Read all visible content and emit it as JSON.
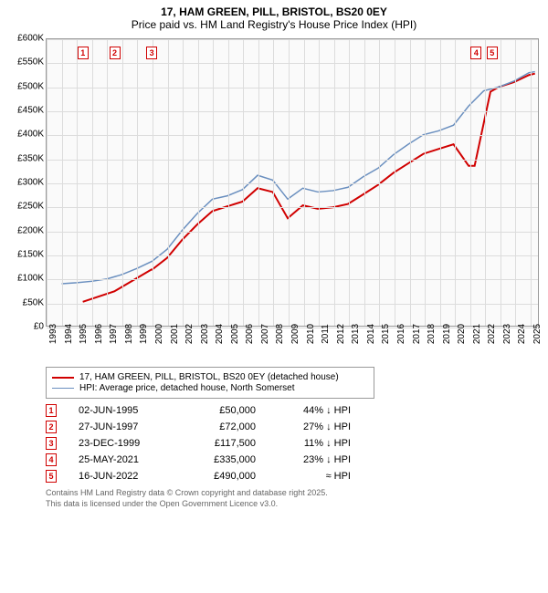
{
  "title": {
    "line1": "17, HAM GREEN, PILL, BRISTOL, BS20 0EY",
    "line2": "Price paid vs. HM Land Registry's House Price Index (HPI)"
  },
  "chart": {
    "type": "line",
    "plot_bg": "#fafafa",
    "grid_color": "#dcdcdc",
    "border_color": "#999999",
    "x_years": [
      1993,
      1994,
      1995,
      1996,
      1997,
      1998,
      1999,
      2000,
      2001,
      2002,
      2003,
      2004,
      2005,
      2006,
      2007,
      2008,
      2009,
      2010,
      2011,
      2012,
      2013,
      2014,
      2015,
      2016,
      2017,
      2018,
      2019,
      2020,
      2021,
      2022,
      2023,
      2024,
      2025
    ],
    "xlim": [
      1993,
      2025.6
    ],
    "ylim": [
      0,
      600
    ],
    "y_ticks": [
      0,
      50,
      100,
      150,
      200,
      250,
      300,
      350,
      400,
      450,
      500,
      550,
      600
    ],
    "y_tick_labels": [
      "£0",
      "£50K",
      "£100K",
      "£150K",
      "£200K",
      "£250K",
      "£300K",
      "£350K",
      "£400K",
      "£450K",
      "£500K",
      "£550K",
      "£600K"
    ],
    "series": [
      {
        "name": "price_paid",
        "color": "#d00000",
        "width": 2,
        "points": [
          [
            1995.4,
            50
          ],
          [
            1997.5,
            72
          ],
          [
            1999.95,
            117.5
          ],
          [
            2000.0,
            117.5
          ],
          [
            2001,
            142
          ],
          [
            2002,
            180
          ],
          [
            2003,
            212
          ],
          [
            2004,
            240
          ],
          [
            2005,
            250
          ],
          [
            2006,
            260
          ],
          [
            2007,
            288
          ],
          [
            2008,
            280
          ],
          [
            2009,
            225
          ],
          [
            2010,
            252
          ],
          [
            2011,
            245
          ],
          [
            2012,
            248
          ],
          [
            2013,
            255
          ],
          [
            2014,
            275
          ],
          [
            2015,
            295
          ],
          [
            2016,
            320
          ],
          [
            2017,
            340
          ],
          [
            2018,
            360
          ],
          [
            2019,
            370
          ],
          [
            2020,
            380
          ],
          [
            2021,
            335
          ],
          [
            2021.4,
            335
          ],
          [
            2022.45,
            490
          ],
          [
            2023,
            500
          ],
          [
            2024,
            510
          ],
          [
            2025,
            525
          ],
          [
            2025.4,
            528
          ]
        ]
      },
      {
        "name": "hpi",
        "color": "#6a8fbf",
        "width": 1.5,
        "points": [
          [
            1994.0,
            88
          ],
          [
            1995,
            90
          ],
          [
            1996,
            93
          ],
          [
            1997,
            98
          ],
          [
            1998,
            107
          ],
          [
            1999,
            120
          ],
          [
            2000,
            135
          ],
          [
            2001,
            160
          ],
          [
            2002,
            200
          ],
          [
            2003,
            235
          ],
          [
            2004,
            265
          ],
          [
            2005,
            272
          ],
          [
            2006,
            285
          ],
          [
            2007,
            315
          ],
          [
            2008,
            305
          ],
          [
            2009,
            265
          ],
          [
            2010,
            288
          ],
          [
            2011,
            280
          ],
          [
            2012,
            283
          ],
          [
            2013,
            290
          ],
          [
            2014,
            312
          ],
          [
            2015,
            330
          ],
          [
            2016,
            358
          ],
          [
            2017,
            380
          ],
          [
            2018,
            400
          ],
          [
            2019,
            408
          ],
          [
            2020,
            420
          ],
          [
            2021,
            460
          ],
          [
            2022,
            492
          ],
          [
            2023,
            500
          ],
          [
            2024,
            512
          ],
          [
            2025,
            530
          ],
          [
            2025.4,
            532
          ]
        ]
      }
    ],
    "markers": [
      {
        "n": "1",
        "x": 1995.4,
        "y_top": 8
      },
      {
        "n": "2",
        "x": 1997.5,
        "y_top": 8
      },
      {
        "n": "3",
        "x": 1999.95,
        "y_top": 8
      },
      {
        "n": "4",
        "x": 2021.4,
        "y_top": 8
      },
      {
        "n": "5",
        "x": 2022.45,
        "y_top": 8
      }
    ]
  },
  "legend": {
    "items": [
      {
        "color": "#d00000",
        "w": 2,
        "label": "17, HAM GREEN, PILL, BRISTOL, BS20 0EY (detached house)"
      },
      {
        "color": "#6a8fbf",
        "w": 1.5,
        "label": "HPI: Average price, detached house, North Somerset"
      }
    ]
  },
  "transactions": [
    {
      "n": "1",
      "date": "02-JUN-1995",
      "price": "£50,000",
      "diff": "44% ↓ HPI"
    },
    {
      "n": "2",
      "date": "27-JUN-1997",
      "price": "£72,000",
      "diff": "27% ↓ HPI"
    },
    {
      "n": "3",
      "date": "23-DEC-1999",
      "price": "£117,500",
      "diff": "11% ↓ HPI"
    },
    {
      "n": "4",
      "date": "25-MAY-2021",
      "price": "£335,000",
      "diff": "23% ↓ HPI"
    },
    {
      "n": "5",
      "date": "16-JUN-2022",
      "price": "£490,000",
      "diff": "≈ HPI"
    }
  ],
  "footer": {
    "line1": "Contains HM Land Registry data © Crown copyright and database right 2025.",
    "line2": "This data is licensed under the Open Government Licence v3.0."
  }
}
